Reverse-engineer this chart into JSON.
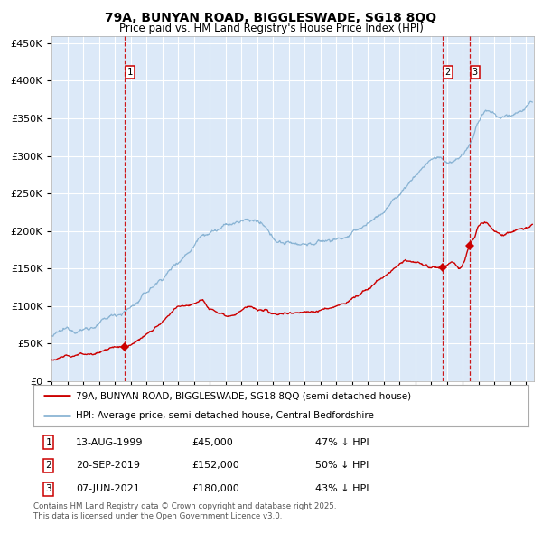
{
  "title1": "79A, BUNYAN ROAD, BIGGLESWADE, SG18 8QQ",
  "title2": "Price paid vs. HM Land Registry's House Price Index (HPI)",
  "ylim": [
    0,
    460000
  ],
  "yticks": [
    0,
    50000,
    100000,
    150000,
    200000,
    250000,
    300000,
    350000,
    400000,
    450000
  ],
  "ytick_labels": [
    "£0",
    "£50K",
    "£100K",
    "£150K",
    "£200K",
    "£250K",
    "£300K",
    "£350K",
    "£400K",
    "£450K"
  ],
  "xlim_start": 1995.0,
  "xlim_end": 2025.5,
  "plot_bg_color": "#dce9f8",
  "grid_color": "#ffffff",
  "red_line_color": "#cc0000",
  "blue_line_color": "#8ab4d4",
  "vline_color": "#cc0000",
  "purchase_dates": [
    1999.617,
    2019.722,
    2021.436
  ],
  "purchase_prices": [
    45000,
    152000,
    180000
  ],
  "purchase_labels": [
    "1",
    "2",
    "3"
  ],
  "legend_red_label": "79A, BUNYAN ROAD, BIGGLESWADE, SG18 8QQ (semi-detached house)",
  "legend_blue_label": "HPI: Average price, semi-detached house, Central Bedfordshire",
  "table_rows": [
    [
      "1",
      "13-AUG-1999",
      "£45,000",
      "47% ↓ HPI"
    ],
    [
      "2",
      "20-SEP-2019",
      "£152,000",
      "50% ↓ HPI"
    ],
    [
      "3",
      "07-JUN-2021",
      "£180,000",
      "43% ↓ HPI"
    ]
  ],
  "footnote": "Contains HM Land Registry data © Crown copyright and database right 2025.\nThis data is licensed under the Open Government Licence v3.0."
}
